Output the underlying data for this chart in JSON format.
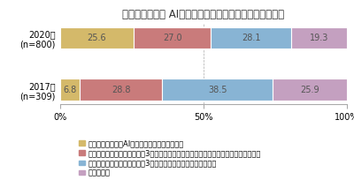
{
  "title": "あなたの職場で AI（人工知能）は導入されていますか？",
  "categories": [
    "2020年\n(n=800)",
    "2017年\n(n=309)"
  ],
  "series": [
    {
      "label": "すでに人工知能（AI）が職場に導入されている",
      "values": [
        25.6,
        6.8
      ],
      "color": "#d4b96a"
    },
    {
      "label": "現在は導入されていないが、3年以内には、導入される計画がある（計画中・検討中）",
      "values": [
        27.0,
        28.8
      ],
      "color": "#c97b7b"
    },
    {
      "label": "現在は導入されていないし、3年以内に、導入される計画もない",
      "values": [
        28.1,
        38.5
      ],
      "color": "#88b4d4"
    },
    {
      "label": "分からない",
      "values": [
        19.3,
        25.9
      ],
      "color": "#c4a0c0"
    }
  ],
  "xticks": [
    0,
    50,
    100
  ],
  "xlabels": [
    "0%",
    "50%",
    "100%"
  ],
  "background_color": "#ffffff",
  "title_fontsize": 8.5,
  "bar_height": 0.42,
  "label_color": "#555555",
  "legend_fontsize": 6.0
}
